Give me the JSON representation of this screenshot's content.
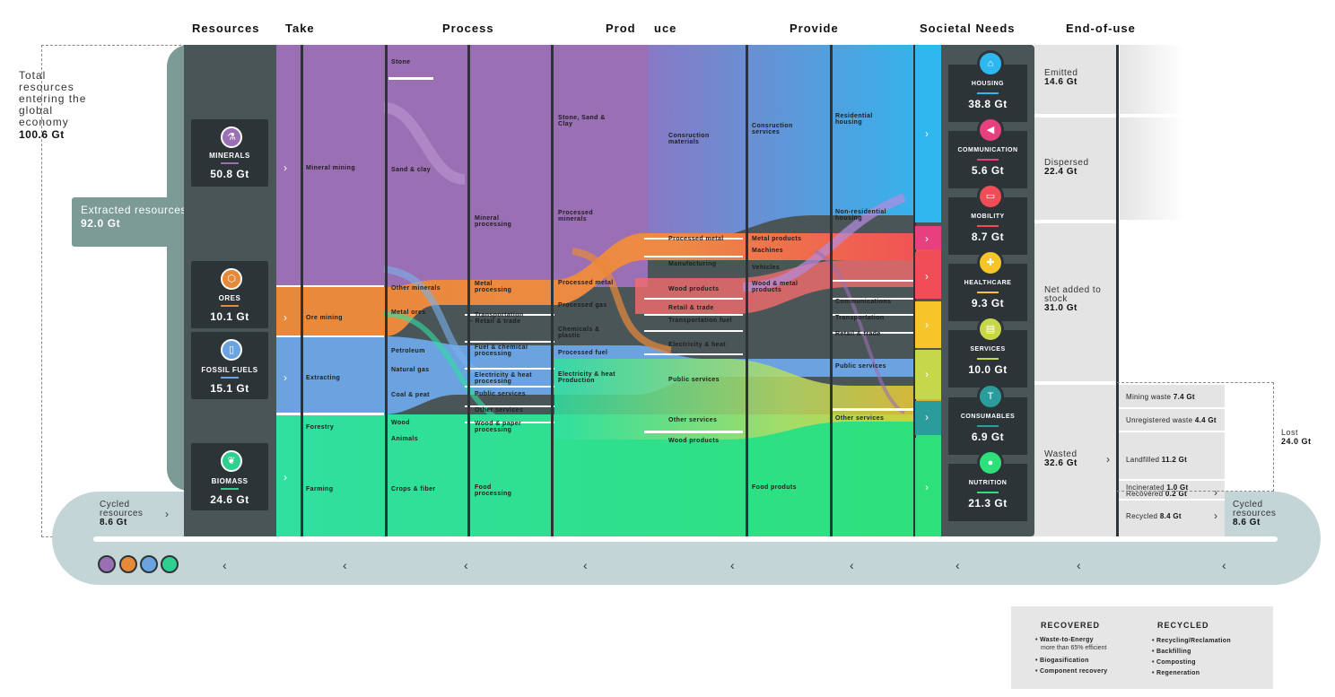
{
  "headers": {
    "resources": "Resources",
    "take": "Take",
    "process": "Process",
    "produce_a": "Prod",
    "produce_b": "uce",
    "provide": "Provide",
    "needs": "Societal Needs",
    "end": "End-of-use"
  },
  "total": {
    "label": "Total resources entering the global economy",
    "value": "100.6 Gt"
  },
  "extracted": {
    "label": "Extracted resources",
    "value": "92.0 Gt"
  },
  "cycled_in": {
    "label": "Cycled resources",
    "value": "8.6 Gt"
  },
  "cycled_out": {
    "label": "Cycled resources",
    "value": "8.6 Gt"
  },
  "resources": [
    {
      "name": "MINERALS",
      "value": "50.8 Gt",
      "color": "#9b6fb3",
      "icon": "flask-icon"
    },
    {
      "name": "ORES",
      "value": "10.1 Gt",
      "color": "#e8893a",
      "icon": "hexagon-icon"
    },
    {
      "name": "FOSSIL FUELS",
      "value": "15.1 Gt",
      "color": "#6aa3e0",
      "icon": "fuel-can-icon"
    },
    {
      "name": "BIOMASS",
      "value": "24.6 Gt",
      "color": "#2fcf8f",
      "icon": "leaf-icon"
    }
  ],
  "take": [
    "Mineral mining",
    "Ore mining",
    "Extracting",
    "Forestry",
    "Farming"
  ],
  "process_in": [
    "Stone",
    "Sand & clay",
    "Other minerals",
    "Metal ores",
    "Petroleum",
    "Natural gas",
    "Coal & peat",
    "Wood",
    "Animals",
    "Crops & fiber"
  ],
  "process_out": [
    "Mineral processing",
    "Metal processing",
    "Transportation",
    "– Retail & trade",
    "Fuel & chemical processing",
    "Electricity & heat processing",
    "Public services",
    "Other services",
    "Wood & paper processing",
    "Food processing"
  ],
  "produce_in": [
    "Stone, Sand & Clay",
    "Processed minerals",
    "Processed metal",
    "Processed gas",
    "Chemicals & plastic",
    "Processed fuel",
    "Electricity & heat Production"
  ],
  "produce_out": [
    "Consruction materials",
    "Processed metal",
    "Manufacturing",
    "Wood products",
    "Retail & trade",
    "Transportation fuel",
    "Electricity & heat",
    "Public services",
    "Other services",
    "Wood products"
  ],
  "provide_in": [
    "Consruction services",
    "Metal products",
    "Machines",
    "Vehicles",
    "Wood & metal products",
    "Food produts"
  ],
  "provide_out": [
    "Residential housing",
    "Non-residential housing",
    "Communications",
    "Transportation",
    "Retail & trade",
    "Public services",
    "Other services"
  ],
  "needs": [
    {
      "name": "HOUSING",
      "value": "38.8 Gt",
      "color": "#2fb8ef",
      "icon": "house-icon"
    },
    {
      "name": "COMMUNICATION",
      "value": "5.6 Gt",
      "color": "#e8407e",
      "icon": "megaphone-icon"
    },
    {
      "name": "MOBILITY",
      "value": "8.7 Gt",
      "color": "#f04d56",
      "icon": "car-icon"
    },
    {
      "name": "HEALTHCARE",
      "value": "9.3 Gt",
      "color": "#f6c52a",
      "icon": "cross-icon"
    },
    {
      "name": "SERVICES",
      "value": "10.0 Gt",
      "color": "#c6d84a",
      "icon": "document-icon"
    },
    {
      "name": "CONSUMABLES",
      "value": "6.9 Gt",
      "color": "#2a9c9c",
      "icon": "shirt-icon"
    },
    {
      "name": "NUTRITION",
      "value": "21.3 Gt",
      "color": "#2ee07a",
      "icon": "apple-icon"
    }
  ],
  "end_of_use": [
    {
      "label": "Emitted",
      "value": "14.6 Gt"
    },
    {
      "label": "Dispersed",
      "value": "22.4 Gt"
    },
    {
      "label": "Net added to stock",
      "value": "31.0 Gt"
    },
    {
      "label": "Wasted",
      "value": "32.6 Gt"
    }
  ],
  "waste": [
    {
      "label": "Mining waste",
      "value": "7.4 Gt"
    },
    {
      "label": "Unregistered waste",
      "value": "4.4 Gt"
    },
    {
      "label": "Landfilled",
      "value": "11.2 Gt"
    },
    {
      "label": "Incinerated",
      "value": "1.0 Gt"
    },
    {
      "label": "Recovered",
      "value": "0.2 Gt"
    },
    {
      "label": "Recycled",
      "value": "8.4 Gt"
    }
  ],
  "lost": {
    "label": "Lost",
    "value": "24.0 Gt"
  },
  "legend": {
    "recovered_title": "RECOVERED",
    "recycled_title": "RECYCLED",
    "recovered": [
      "• Waste-to-Energy",
      "• Biogasification",
      "• Component recovery"
    ],
    "recovered_note": "more than 65% efficient",
    "recycled": [
      "• Recycling/Reclamation",
      "• Backfilling",
      "• Composting",
      "• Regeneration"
    ]
  }
}
